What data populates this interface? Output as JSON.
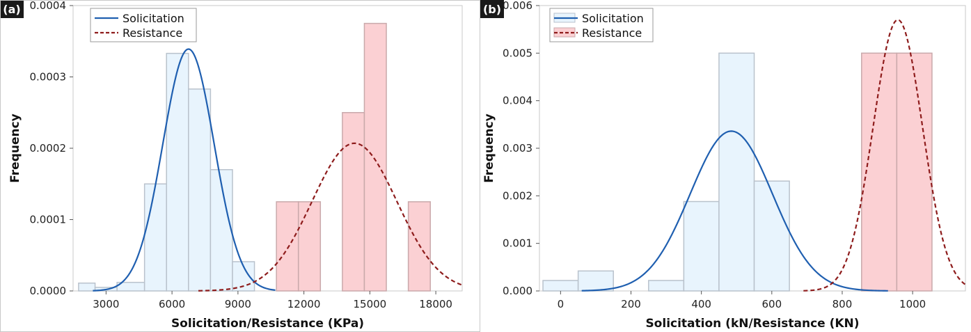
{
  "chart_data": [
    {
      "panel_label": "(a)",
      "type": "bar",
      "xlabel": "Solicitation/Resistance (KPa)",
      "ylabel": "Frequency",
      "xlim": [
        1500,
        19200
      ],
      "ylim": [
        0,
        0.0004
      ],
      "xticks": [
        3000,
        6000,
        9000,
        12000,
        15000,
        18000
      ],
      "xtick_labels": [
        "3000",
        "6000",
        "9000",
        "12000",
        "15000",
        "18000"
      ],
      "yticks": [
        0,
        0.0001,
        0.0002,
        0.0003,
        0.0004
      ],
      "ytick_labels": [
        "0.0000",
        "0.0001",
        "0.0002",
        "0.0003",
        "0.0004"
      ],
      "legend": {
        "placement": "top-left",
        "entries": [
          "Solicitation",
          "Resistance"
        ]
      },
      "series": [
        {
          "name": "Solicitation",
          "kind": "histogram",
          "color": "#1f5fb0",
          "bin_edges": [
            1750,
            2500,
            3500,
            4750,
            5750,
            6750,
            7750,
            8750,
            9750
          ],
          "values": [
            1.1e-05,
            5e-06,
            1.2e-05,
            0.00015,
            0.000333,
            0.000283,
            0.00017,
            4.1e-05
          ]
        },
        {
          "name": "Resistance",
          "kind": "histogram",
          "color": "#a8201a",
          "bin_edges": [
            10750,
            11750,
            12750,
            13750,
            14750,
            15750,
            16750,
            17750
          ],
          "values": [
            0.000125,
            0.000125,
            0,
            0.00025,
            0.000375,
            0,
            0.000125
          ]
        },
        {
          "name": "Solicitation",
          "kind": "normal_curve",
          "line_style": "solid",
          "color": "#1f5fb0",
          "mean": 6750,
          "sd": 1170,
          "peak": 0.000339,
          "x_range": [
            2400,
            10700
          ]
        },
        {
          "name": "Resistance",
          "kind": "normal_curve",
          "line_style": "dashed",
          "color": "#8e1c1c",
          "mean": 14300,
          "sd": 1930,
          "peak": 0.000207,
          "x_range": [
            7200,
            19200
          ]
        }
      ]
    },
    {
      "panel_label": "(b)",
      "type": "bar",
      "xlabel": "Solicitation (kN/Resistance (KN)",
      "ylabel": "Frequency",
      "xlim": [
        -60,
        1150
      ],
      "ylim": [
        0,
        0.006
      ],
      "xticks": [
        0,
        200,
        400,
        600,
        800,
        1000
      ],
      "xtick_labels": [
        "0",
        "200",
        "400",
        "600",
        "800",
        "1000"
      ],
      "yticks": [
        0,
        0.001,
        0.002,
        0.003,
        0.004,
        0.005,
        0.006
      ],
      "ytick_labels": [
        "0.000",
        "0.001",
        "0.002",
        "0.003",
        "0.004",
        "0.005",
        "0.006"
      ],
      "legend": {
        "placement": "top-left",
        "entries": [
          "Solicitation",
          "Resistance"
        ]
      },
      "series": [
        {
          "name": "Solicitation",
          "kind": "histogram",
          "color": "#1f5fb0",
          "bin_edges": [
            -50,
            50,
            150,
            250,
            350,
            450,
            550,
            650
          ],
          "values": [
            0.00022,
            0.00042,
            0,
            0.00022,
            0.00188,
            0.005,
            0.00231
          ]
        },
        {
          "name": "Resistance",
          "kind": "histogram",
          "color": "#a8201a",
          "bin_edges": [
            855,
            955,
            1055
          ],
          "values": [
            0.005,
            0.005
          ]
        },
        {
          "name": "Solicitation",
          "kind": "normal_curve",
          "line_style": "solid",
          "color": "#1f5fb0",
          "mean": 485,
          "sd": 117,
          "peak": 0.00336,
          "x_range": [
            60,
            930
          ]
        },
        {
          "name": "Resistance",
          "kind": "normal_curve",
          "line_style": "dashed",
          "color": "#8e1c1c",
          "mean": 958,
          "sd": 70,
          "peak": 0.0057,
          "x_range": [
            690,
            1150
          ]
        }
      ]
    }
  ]
}
